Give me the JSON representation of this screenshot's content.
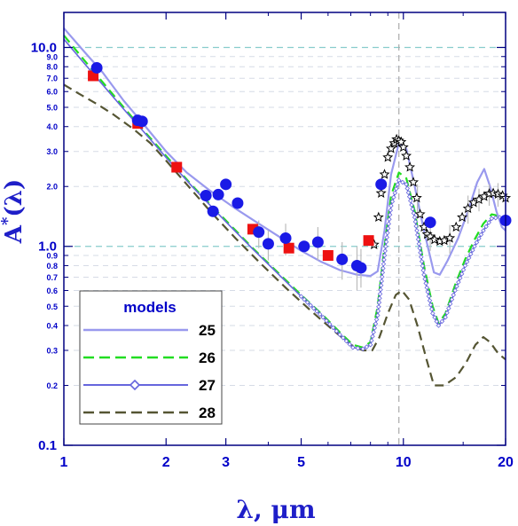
{
  "chart_data": {
    "type": "line",
    "xlabel": "λ, μm",
    "ylabel": "A*(λ)",
    "xlim": [
      1,
      20
    ],
    "ylim": [
      0.1,
      15
    ],
    "xscale": "log",
    "yscale": "log",
    "x_ticks": [
      1,
      2,
      3,
      5,
      10,
      20
    ],
    "x_tick_labels": [
      "1",
      "2",
      "3",
      "5",
      "10",
      "20"
    ],
    "y_major_ticks": [
      0.1,
      1.0,
      10.0
    ],
    "y_major_labels": [
      "0.1",
      "1.0",
      "10.0"
    ],
    "y_minor_ticks": [
      0.2,
      0.3,
      0.4,
      0.5,
      0.6,
      0.7,
      0.8,
      0.9,
      2,
      3,
      4,
      5,
      6,
      7,
      8,
      9
    ],
    "y_minor_labels": [
      "0.2",
      "0.3",
      "0.4",
      "0.5",
      "0.6",
      "0.7",
      "0.8",
      "0.9",
      "2.0",
      "3.0",
      "4.0",
      "5.0",
      "6.0",
      "7.0",
      "8.0",
      "9.0"
    ],
    "reference_lines": {
      "horizontal": [
        1.0,
        10.0
      ],
      "vertical": [
        9.7
      ]
    },
    "legend": {
      "title": "models",
      "position": "bottom-left"
    },
    "series": [
      {
        "name": "25",
        "style": "solid",
        "color": "#9999ee",
        "points": [
          [
            1.0,
            12.5
          ],
          [
            1.15,
            9.5
          ],
          [
            1.3,
            7.5
          ],
          [
            1.5,
            5.4
          ],
          [
            1.7,
            4.2
          ],
          [
            2.0,
            3.0
          ],
          [
            2.3,
            2.35
          ],
          [
            2.7,
            1.9
          ],
          [
            3.2,
            1.55
          ],
          [
            3.7,
            1.32
          ],
          [
            4.3,
            1.12
          ],
          [
            5.0,
            0.95
          ],
          [
            5.7,
            0.84
          ],
          [
            6.5,
            0.76
          ],
          [
            7.3,
            0.72
          ],
          [
            8.0,
            0.71
          ],
          [
            8.4,
            0.75
          ],
          [
            8.8,
            1.2
          ],
          [
            9.2,
            2.3
          ],
          [
            9.7,
            3.3
          ],
          [
            10.2,
            3.1
          ],
          [
            10.8,
            2.0
          ],
          [
            11.5,
            1.2
          ],
          [
            12.3,
            0.74
          ],
          [
            12.8,
            0.72
          ],
          [
            13.5,
            0.85
          ],
          [
            14.5,
            1.1
          ],
          [
            15.5,
            1.5
          ],
          [
            16.5,
            2.1
          ],
          [
            17.3,
            2.45
          ],
          [
            18.0,
            2.0
          ],
          [
            18.8,
            1.5
          ],
          [
            19.5,
            1.25
          ],
          [
            20.0,
            1.2
          ]
        ]
      },
      {
        "name": "26",
        "style": "dashed",
        "color": "#22dd22",
        "points": [
          [
            1.0,
            11.5
          ],
          [
            1.15,
            8.6
          ],
          [
            1.3,
            6.7
          ],
          [
            1.5,
            5.0
          ],
          [
            1.7,
            3.9
          ],
          [
            2.0,
            2.85
          ],
          [
            2.4,
            2.0
          ],
          [
            3.0,
            1.35
          ],
          [
            3.6,
            0.98
          ],
          [
            4.3,
            0.73
          ],
          [
            5.0,
            0.57
          ],
          [
            5.8,
            0.45
          ],
          [
            6.5,
            0.37
          ],
          [
            7.1,
            0.32
          ],
          [
            7.6,
            0.31
          ],
          [
            8.0,
            0.33
          ],
          [
            8.4,
            0.5
          ],
          [
            8.8,
            1.0
          ],
          [
            9.2,
            1.8
          ],
          [
            9.7,
            2.35
          ],
          [
            10.2,
            2.2
          ],
          [
            10.8,
            1.5
          ],
          [
            11.5,
            0.8
          ],
          [
            12.2,
            0.5
          ],
          [
            12.7,
            0.41
          ],
          [
            13.3,
            0.46
          ],
          [
            14.2,
            0.64
          ],
          [
            15.2,
            0.86
          ],
          [
            16.2,
            1.08
          ],
          [
            17.2,
            1.3
          ],
          [
            18.2,
            1.45
          ],
          [
            19.2,
            1.42
          ],
          [
            20.0,
            1.35
          ]
        ]
      },
      {
        "name": "27",
        "style": "solid-diamond",
        "color": "#6666dd",
        "points": [
          [
            1.0,
            11.0
          ],
          [
            1.15,
            8.3
          ],
          [
            1.3,
            6.5
          ],
          [
            1.5,
            4.9
          ],
          [
            1.7,
            3.85
          ],
          [
            2.0,
            2.8
          ],
          [
            2.4,
            1.98
          ],
          [
            3.0,
            1.33
          ],
          [
            3.6,
            0.97
          ],
          [
            4.3,
            0.72
          ],
          [
            5.0,
            0.56
          ],
          [
            5.8,
            0.44
          ],
          [
            6.5,
            0.36
          ],
          [
            7.1,
            0.31
          ],
          [
            7.6,
            0.305
          ],
          [
            8.0,
            0.32
          ],
          [
            8.4,
            0.45
          ],
          [
            8.8,
            0.9
          ],
          [
            9.2,
            1.6
          ],
          [
            9.7,
            2.15
          ],
          [
            10.2,
            2.05
          ],
          [
            10.8,
            1.4
          ],
          [
            11.5,
            0.72
          ],
          [
            12.2,
            0.46
          ],
          [
            12.7,
            0.4
          ],
          [
            13.3,
            0.44
          ],
          [
            14.2,
            0.6
          ],
          [
            15.2,
            0.8
          ],
          [
            16.2,
            1.0
          ],
          [
            17.2,
            1.2
          ],
          [
            18.2,
            1.38
          ],
          [
            19.2,
            1.4
          ],
          [
            20.0,
            1.32
          ]
        ]
      },
      {
        "name": "28",
        "style": "dashed",
        "color": "#555533",
        "points": [
          [
            1.0,
            6.5
          ],
          [
            1.1,
            5.9
          ],
          [
            1.25,
            5.2
          ],
          [
            1.4,
            4.6
          ],
          [
            1.6,
            3.9
          ],
          [
            1.8,
            3.3
          ],
          [
            2.0,
            2.7
          ],
          [
            2.3,
            2.05
          ],
          [
            2.7,
            1.5
          ],
          [
            3.2,
            1.1
          ],
          [
            3.8,
            0.82
          ],
          [
            4.5,
            0.62
          ],
          [
            5.3,
            0.48
          ],
          [
            6.2,
            0.38
          ],
          [
            7.0,
            0.32
          ],
          [
            7.6,
            0.3
          ],
          [
            8.1,
            0.3
          ],
          [
            8.5,
            0.35
          ],
          [
            9.0,
            0.46
          ],
          [
            9.5,
            0.57
          ],
          [
            9.9,
            0.6
          ],
          [
            10.4,
            0.54
          ],
          [
            11.0,
            0.4
          ],
          [
            11.7,
            0.27
          ],
          [
            12.3,
            0.2
          ],
          [
            13.2,
            0.2
          ],
          [
            14.3,
            0.22
          ],
          [
            15.3,
            0.26
          ],
          [
            16.3,
            0.32
          ],
          [
            17.2,
            0.35
          ],
          [
            18.0,
            0.33
          ],
          [
            19.0,
            0.29
          ],
          [
            20.0,
            0.27
          ]
        ]
      }
    ],
    "observations": {
      "circles": {
        "color": "#1a1ae6",
        "points": [
          [
            1.25,
            7.9
          ],
          [
            1.65,
            4.3
          ],
          [
            1.7,
            4.25
          ],
          [
            2.62,
            1.8
          ],
          [
            2.75,
            1.5
          ],
          [
            2.85,
            1.82
          ],
          [
            3.0,
            2.05
          ],
          [
            3.25,
            1.65
          ],
          [
            3.75,
            1.18
          ],
          [
            4.0,
            1.03
          ],
          [
            4.5,
            1.1
          ],
          [
            5.1,
            1.0
          ],
          [
            5.6,
            1.05
          ],
          [
            6.6,
            0.86
          ],
          [
            7.3,
            0.8
          ],
          [
            7.5,
            0.78
          ],
          [
            8.6,
            2.05
          ],
          [
            12.0,
            1.32
          ],
          [
            20.0,
            1.35
          ]
        ],
        "error_bars": [
          [
            3.75,
            0.98,
            1.35
          ],
          [
            4.0,
            0.85,
            1.2
          ],
          [
            4.5,
            0.9,
            1.3
          ],
          [
            5.6,
            0.85,
            1.25
          ],
          [
            6.6,
            0.68,
            1.05
          ],
          [
            7.3,
            0.6,
            1.0
          ],
          [
            7.5,
            0.62,
            0.97
          ]
        ]
      },
      "squares": {
        "color": "#ee1111",
        "points": [
          [
            1.22,
            7.2
          ],
          [
            1.65,
            4.15
          ],
          [
            2.15,
            2.5
          ],
          [
            3.6,
            1.22
          ],
          [
            4.6,
            0.98
          ],
          [
            6.0,
            0.9
          ],
          [
            7.9,
            1.07
          ]
        ]
      },
      "stars": {
        "color": "#000000",
        "points": [
          [
            8.2,
            1.02
          ],
          [
            8.45,
            1.4
          ],
          [
            8.6,
            1.85
          ],
          [
            8.8,
            2.3
          ],
          [
            9.0,
            2.8
          ],
          [
            9.2,
            3.1
          ],
          [
            9.4,
            3.3
          ],
          [
            9.55,
            3.45
          ],
          [
            9.7,
            3.4
          ],
          [
            9.85,
            3.35
          ],
          [
            10.0,
            3.15
          ],
          [
            10.2,
            2.85
          ],
          [
            10.45,
            2.5
          ],
          [
            10.7,
            2.1
          ],
          [
            10.95,
            1.75
          ],
          [
            11.2,
            1.45
          ],
          [
            11.5,
            1.25
          ],
          [
            11.75,
            1.15
          ],
          [
            12.0,
            1.12
          ],
          [
            12.35,
            1.08
          ],
          [
            12.8,
            1.06
          ],
          [
            13.2,
            1.07
          ],
          [
            13.7,
            1.1
          ],
          [
            14.3,
            1.25
          ],
          [
            14.9,
            1.4
          ],
          [
            15.5,
            1.55
          ],
          [
            16.1,
            1.66
          ],
          [
            16.7,
            1.72
          ],
          [
            17.3,
            1.78
          ],
          [
            17.9,
            1.84
          ],
          [
            18.4,
            1.85
          ],
          [
            19.0,
            1.83
          ],
          [
            19.6,
            1.8
          ],
          [
            20.0,
            1.75
          ]
        ],
        "error_bars": [
          [
            11.0,
            1.4,
            2.05
          ],
          [
            12.0,
            0.95,
            1.3
          ],
          [
            13.7,
            0.92,
            1.28
          ],
          [
            15.5,
            1.3,
            1.8
          ],
          [
            16.7,
            1.5,
            1.95
          ],
          [
            17.9,
            1.6,
            2.05
          ],
          [
            19.0,
            1.58,
            2.08
          ]
        ]
      }
    }
  }
}
